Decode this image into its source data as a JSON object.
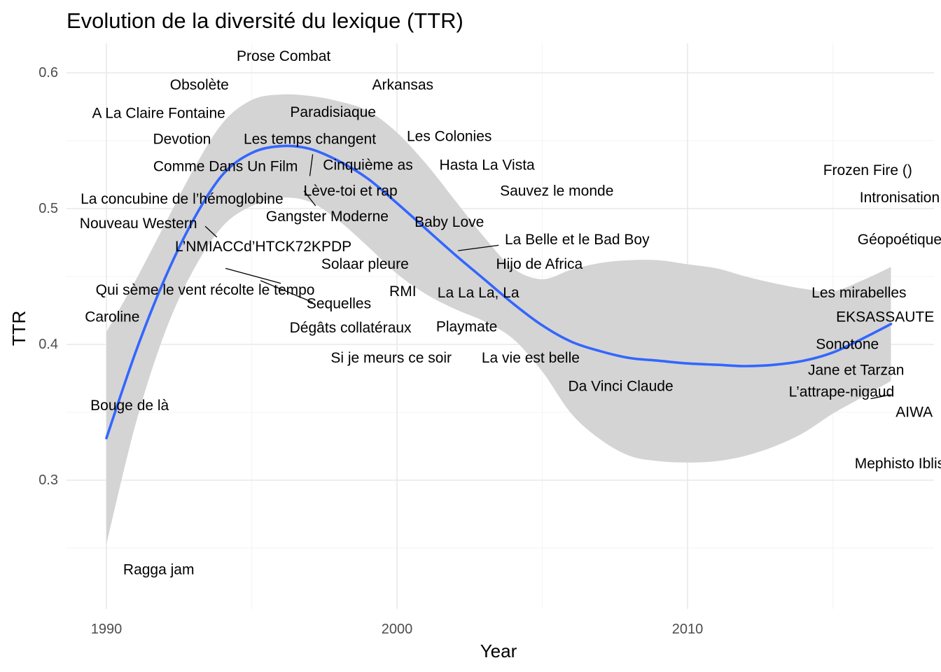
{
  "chart_data": {
    "type": "scatter",
    "title": "Evolution de la diversité du lexique (TTR)",
    "xlabel": "Year",
    "ylabel": "TTR",
    "xlim": [
      1988.6,
      2018.7
    ],
    "ylim": [
      0.2,
      0.64
    ],
    "x_ticks": [
      1990,
      2000,
      2010
    ],
    "x_minor_ticks": [
      1995,
      2005,
      2015
    ],
    "y_ticks": [
      0.3,
      0.4,
      0.5,
      0.6
    ],
    "y_tick_labels": [
      "0.3",
      "0.4",
      "0.5",
      "0.6"
    ],
    "y_minor_ticks": [
      0.25,
      0.35,
      0.45,
      0.55
    ],
    "grid": true,
    "legend": "none",
    "colors": {
      "smooth_line": "#3366ff",
      "confidence_band": "#d4d4d4",
      "grid_major": "#ebebeb",
      "grid_minor": "#f5f5f5",
      "label_text": "#000000",
      "tick_text": "#4d4d4d"
    },
    "smooth": {
      "x": [
        1990,
        1991,
        1992,
        1993,
        1994,
        1995,
        1996,
        1997,
        1998,
        1999,
        2000,
        2001,
        2002,
        2003,
        2004,
        2005,
        2006,
        2007,
        2008,
        2009,
        2010,
        2011,
        2012,
        2013,
        2014,
        2015,
        2016,
        2017
      ],
      "y": [
        0.331,
        0.394,
        0.448,
        0.492,
        0.525,
        0.541,
        0.546,
        0.544,
        0.535,
        0.522,
        0.504,
        0.485,
        0.466,
        0.448,
        0.43,
        0.414,
        0.402,
        0.395,
        0.39,
        0.388,
        0.386,
        0.385,
        0.384,
        0.385,
        0.388,
        0.394,
        0.404,
        0.415
      ],
      "ymin": [
        0.253,
        0.341,
        0.408,
        0.455,
        0.487,
        0.502,
        0.508,
        0.505,
        0.491,
        0.472,
        0.452,
        0.437,
        0.426,
        0.417,
        0.404,
        0.38,
        0.349,
        0.33,
        0.318,
        0.314,
        0.313,
        0.314,
        0.318,
        0.325,
        0.335,
        0.349,
        0.361,
        0.373
      ],
      "ymax": [
        0.409,
        0.447,
        0.488,
        0.529,
        0.563,
        0.58,
        0.584,
        0.583,
        0.579,
        0.572,
        0.556,
        0.533,
        0.506,
        0.479,
        0.456,
        0.448,
        0.455,
        0.46,
        0.462,
        0.462,
        0.459,
        0.456,
        0.45,
        0.445,
        0.441,
        0.439,
        0.447,
        0.457
      ]
    },
    "points": [
      {
        "label": "Prose Combat",
        "x": 1996.1,
        "y": 0.612
      },
      {
        "label": "Obsolète",
        "x": 1993.3,
        "y": 0.591
      },
      {
        "label": "Arkansas",
        "x": 2000.2,
        "y": 0.591
      },
      {
        "label": "A La Claire Fontaine",
        "x": 1991.8,
        "y": 0.569
      },
      {
        "label": "Paradisiaque",
        "x": 1997.8,
        "y": 0.571
      },
      {
        "label": "Devotion",
        "x": 1992.6,
        "y": 0.549
      },
      {
        "label": "Les temps changent",
        "x": 1997.4,
        "y": 0.55
      },
      {
        "label": "Les Colonies",
        "x": 2001.7,
        "y": 0.552
      },
      {
        "label": "Comme Dans Un Film",
        "x": 1994.0,
        "y": 0.525
      },
      {
        "label": "Cinquième as",
        "x": 1999.0,
        "y": 0.53
      },
      {
        "label": "Hasta La Vista",
        "x": 2003.1,
        "y": 0.53
      },
      {
        "label": "Frozen Fire ()",
        "x": 2016.2,
        "y": 0.524
      },
      {
        "label": "Lève-toi et rap",
        "x": 1998.4,
        "y": 0.511
      },
      {
        "label": "Sauvez le monde",
        "x": 2005.5,
        "y": 0.511
      },
      {
        "label": "La concubine de l’hémoglobine",
        "x": 1992.6,
        "y": 0.504
      },
      {
        "label": "Intronisation",
        "x": 2017.3,
        "y": 0.505
      },
      {
        "label": "Gangster Moderne",
        "x": 1997.2,
        "y": 0.49
      },
      {
        "label": "Nouveau Western",
        "x": 1992.5,
        "y": 0.482
      },
      {
        "label": "Baby Love",
        "x": 2001.7,
        "y": 0.487
      },
      {
        "label": "La Belle et le Bad Boy",
        "x": 2006.2,
        "y": 0.474
      },
      {
        "label": "Géopoétique",
        "x": 2017.3,
        "y": 0.474
      },
      {
        "label": "L’NMIACCd’HTCK72KPDP",
        "x": 1994.4,
        "y": 0.469
      },
      {
        "label": "Solaar pleure",
        "x": 1998.7,
        "y": 0.455
      },
      {
        "label": "Hijo de Africa",
        "x": 2004.9,
        "y": 0.455
      },
      {
        "label": "Qui sème le vent récolte le tempo",
        "x": 1993.4,
        "y": 0.415
      },
      {
        "label": "RMI",
        "x": 2000.3,
        "y": 0.415
      },
      {
        "label": "La La La, La",
        "x": 2002.8,
        "y": 0.414
      },
      {
        "label": "Les mirabelles",
        "x": 2016.0,
        "y": 0.414
      },
      {
        "label": "Sequelles",
        "x": 1998.2,
        "y": 0.399
      },
      {
        "label": "Caroline",
        "x": 1990.2,
        "y": 0.421
      },
      {
        "label": "EKSASSAUTE",
        "x": 2016.8,
        "y": 0.422
      },
      {
        "label": "Dégâts collatéraux",
        "x": 1998.4,
        "y": 0.397
      },
      {
        "label": "Playmate",
        "x": 2002.4,
        "y": 0.398
      },
      {
        "label": "Sonotone",
        "x": 2015.5,
        "y": 0.4
      },
      {
        "label": "Si je meurs ce soir",
        "x": 1999.8,
        "y": 0.386
      },
      {
        "label": "La vie est belle",
        "x": 2004.6,
        "y": 0.385
      },
      {
        "label": "Jane et Tarzan",
        "x": 2015.8,
        "y": 0.382
      },
      {
        "label": "Da Vinci Claude",
        "x": 2007.8,
        "y": 0.368
      },
      {
        "label": "L’attrape-nigaud",
        "x": 2017.0,
        "y": 0.363
      },
      {
        "label": "Bouge de là",
        "x": 1990.8,
        "y": 0.356
      },
      {
        "label": "AIWA",
        "x": 2017.5,
        "y": 0.347
      },
      {
        "label": "Mephisto Iblis",
        "x": 2017.3,
        "y": 0.312
      },
      {
        "label": "Ragga jam",
        "x": 1991.8,
        "y": 0.233
      }
    ],
    "point_labels": [
      {
        "text": "Prose Combat",
        "x": 1996.1,
        "y": 0.612
      },
      {
        "text": "Obsolète",
        "x": 1993.2,
        "y": 0.591
      },
      {
        "text": "Arkansas",
        "x": 2000.2,
        "y": 0.591
      },
      {
        "text": "A La Claire Fontaine",
        "x": 1991.8,
        "y": 0.57
      },
      {
        "text": "Paradisiaque",
        "x": 1997.8,
        "y": 0.571
      },
      {
        "text": "Devotion",
        "x": 1992.6,
        "y": 0.551
      },
      {
        "text": "Les temps changent",
        "x": 1997.0,
        "y": 0.551
      },
      {
        "text": "Les Colonies",
        "x": 2001.8,
        "y": 0.553
      },
      {
        "text": "Comme Dans Un Film",
        "x": 1994.1,
        "y": 0.531
      },
      {
        "text": "Cinquième as",
        "x": 1999.0,
        "y": 0.532
      },
      {
        "text": "Hasta La Vista",
        "x": 2003.1,
        "y": 0.532
      },
      {
        "text": "Frozen Fire ()",
        "x": 2016.2,
        "y": 0.528
      },
      {
        "text": "Lève-toi et rap",
        "x": 1998.4,
        "y": 0.513
      },
      {
        "text": "Sauvez le monde",
        "x": 2005.5,
        "y": 0.513
      },
      {
        "text": "La concubine de l’hémoglobine",
        "x": 1992.6,
        "y": 0.507
      },
      {
        "text": "Intronisation",
        "x": 2017.3,
        "y": 0.508
      },
      {
        "text": "Gangster Moderne",
        "x": 1997.6,
        "y": 0.494
      },
      {
        "text": "Nouveau Western",
        "x": 1991.1,
        "y": 0.489
      },
      {
        "text": "Baby Love",
        "x": 2001.8,
        "y": 0.49
      },
      {
        "text": "La Belle et le Bad Boy",
        "x": 2006.2,
        "y": 0.477
      },
      {
        "text": "Géopoétique",
        "x": 2017.3,
        "y": 0.477
      },
      {
        "text": "L’NMIACCd’HTCK72KPDP",
        "x": 1995.4,
        "y": 0.472
      },
      {
        "text": "Solaar pleure",
        "x": 1998.9,
        "y": 0.459
      },
      {
        "text": "Hijo de Africa",
        "x": 2004.9,
        "y": 0.459
      },
      {
        "text": "Qui sème le vent récolte le tempo",
        "x": 1993.4,
        "y": 0.44
      },
      {
        "text": "RMI",
        "x": 2000.2,
        "y": 0.439
      },
      {
        "text": "La La La, La",
        "x": 2002.8,
        "y": 0.438
      },
      {
        "text": "Les mirabelles",
        "x": 2015.9,
        "y": 0.438
      },
      {
        "text": "Sequelles",
        "x": 1998.0,
        "y": 0.43
      },
      {
        "text": "Caroline",
        "x": 1990.2,
        "y": 0.42
      },
      {
        "text": "EKSASSAUTE",
        "x": 2016.8,
        "y": 0.42
      },
      {
        "text": "Dégâts collatéraux",
        "x": 1998.4,
        "y": 0.412
      },
      {
        "text": "Playmate",
        "x": 2002.4,
        "y": 0.413
      },
      {
        "text": "Sonotone",
        "x": 2015.5,
        "y": 0.4
      },
      {
        "text": "Si je meurs ce soir",
        "x": 1999.8,
        "y": 0.39
      },
      {
        "text": "La vie est belle",
        "x": 2004.6,
        "y": 0.39
      },
      {
        "text": "Jane et Tarzan",
        "x": 2015.8,
        "y": 0.381
      },
      {
        "text": "Da Vinci Claude",
        "x": 2007.7,
        "y": 0.369
      },
      {
        "text": "L’attrape-nigaud",
        "x": 2015.3,
        "y": 0.365
      },
      {
        "text": "Bouge de là",
        "x": 1990.8,
        "y": 0.355
      },
      {
        "text": "AIWA",
        "x": 2017.8,
        "y": 0.35
      },
      {
        "text": "Mephisto Iblis",
        "x": 2017.3,
        "y": 0.312
      },
      {
        "text": "Ragga jam",
        "x": 1991.8,
        "y": 0.234
      }
    ],
    "leader_lines": [
      {
        "label": "Les temps changent",
        "x1": 1997.1,
        "y1": 0.54,
        "x2": 1997.0,
        "y2": 0.524
      },
      {
        "label": "Lève-toi et rap",
        "x1": 1996.8,
        "y1": 0.513,
        "x2": 1997.2,
        "y2": 0.502
      },
      {
        "label": "Nouveau Western",
        "x1": 1993.4,
        "y1": 0.487,
        "x2": 1993.8,
        "y2": 0.479
      },
      {
        "label": "L’NMIACCd’HTCK72KPDP",
        "x1": 1994.1,
        "y1": 0.456,
        "x2": 1996.0,
        "y2": 0.445
      },
      {
        "label": "Qui sème le vent récolte le tempo",
        "x1": 1995.3,
        "y1": 0.447,
        "x2": 1997.1,
        "y2": 0.431
      },
      {
        "label": "La Belle et le Bad Boy",
        "x1": 2002.1,
        "y1": 0.469,
        "x2": 2003.5,
        "y2": 0.473
      },
      {
        "label": "L’attrape-nigaud",
        "x1": 2016.3,
        "y1": 0.36,
        "x2": 2017.0,
        "y2": 0.363
      }
    ]
  }
}
